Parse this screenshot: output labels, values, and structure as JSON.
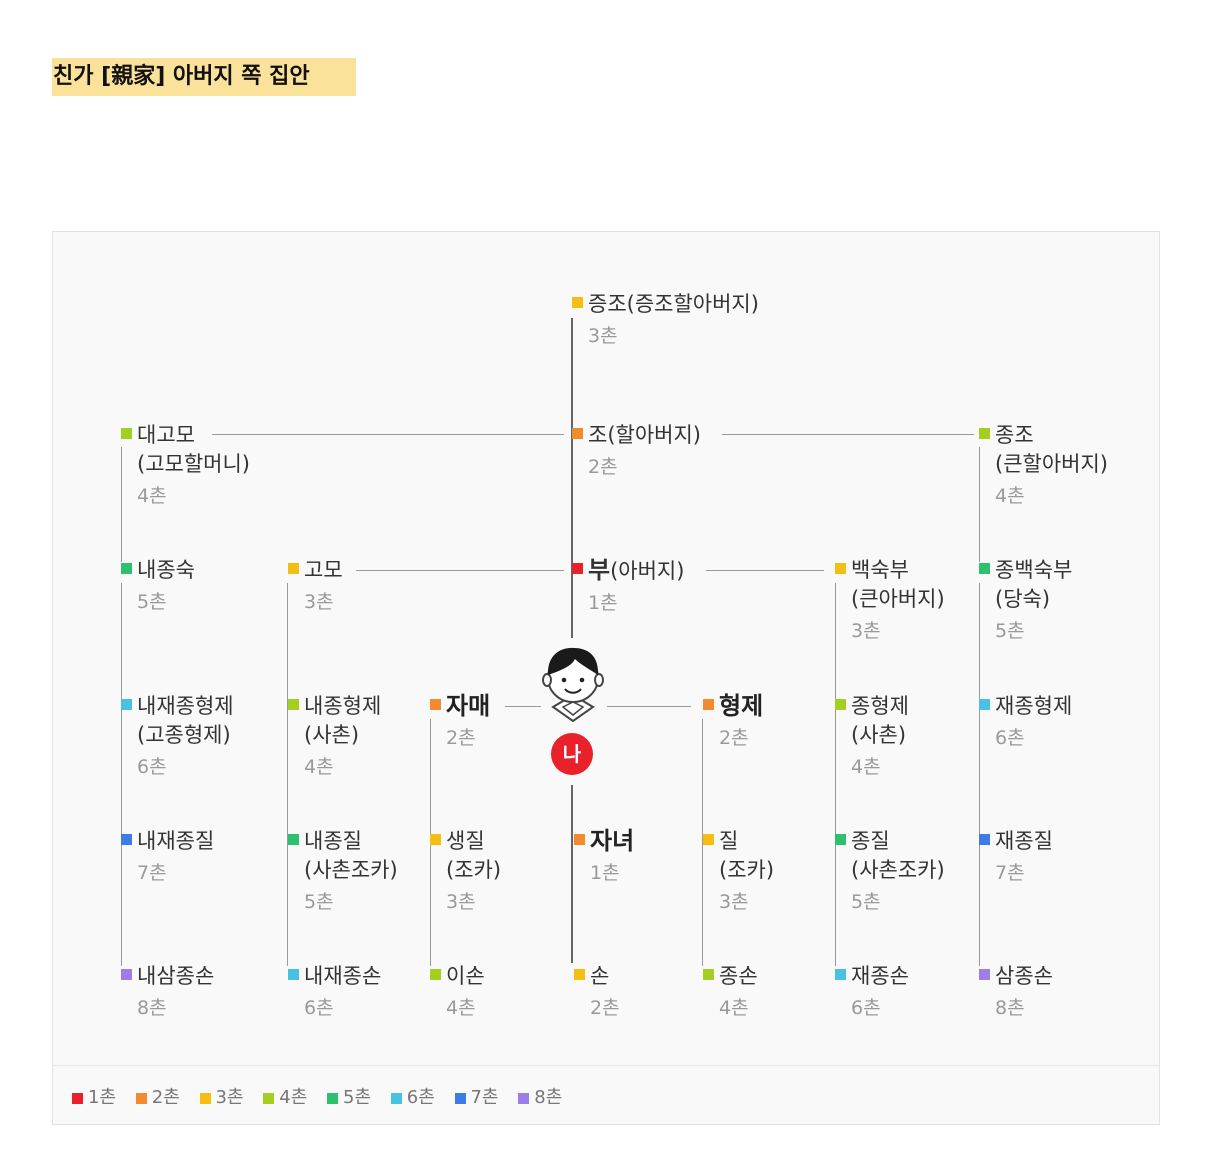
{
  "title": "친가 [親家] 아버지 쪽 집안",
  "colors": {
    "1": "#e8212b",
    "2": "#f28a2f",
    "3": "#f5be12",
    "4": "#a4cf20",
    "5": "#2ec16d",
    "6": "#49c1e3",
    "7": "#3d7be6",
    "8": "#9d7ee8"
  },
  "me": "나",
  "nodes": {
    "jeungjo": {
      "name": "증조(증조할아버지)",
      "degree": "3촌"
    },
    "jo": {
      "name": "조(할아버지)",
      "degree": "2촌"
    },
    "daegomo": {
      "name": "대고모",
      "sub": "(고모할머니)",
      "degree": "4촌"
    },
    "jongjo": {
      "name": "종조",
      "sub": "(큰할아버지)",
      "degree": "4촌"
    },
    "bu": {
      "name": "부",
      "name2": "(아버지)",
      "degree": "1촌"
    },
    "gomo": {
      "name": "고모",
      "degree": "3촌"
    },
    "naejongsuk": {
      "name": "내종숙",
      "degree": "5촌"
    },
    "baeksukbu": {
      "name": "백숙부",
      "sub": "(큰아버지)",
      "degree": "3촌"
    },
    "jongbaeksukbu": {
      "name": "종백숙부",
      "sub": "(당숙)",
      "degree": "5촌"
    },
    "naejaejonghyeongje": {
      "name": "내재종형제",
      "sub": "(고종형제)",
      "degree": "6촌"
    },
    "naejonghyeongje": {
      "name": "내종형제",
      "sub": "(사촌)",
      "degree": "4촌"
    },
    "jamae": {
      "name": "자매",
      "degree": "2촌"
    },
    "hyeongje": {
      "name": "형제",
      "degree": "2촌"
    },
    "jonghyeongje": {
      "name": "종형제",
      "sub": "(사촌)",
      "degree": "4촌"
    },
    "jaejonghyeongje": {
      "name": "재종형제",
      "degree": "6촌"
    },
    "naejaejongjil": {
      "name": "내재종질",
      "degree": "7촌"
    },
    "naejongjil": {
      "name": "내종질",
      "sub": "(사촌조카)",
      "degree": "5촌"
    },
    "saengjil": {
      "name": "생질",
      "sub": "(조카)",
      "degree": "3촌"
    },
    "janyeo": {
      "name": "자녀",
      "degree": "1촌"
    },
    "jil": {
      "name": "질",
      "sub": "(조카)",
      "degree": "3촌"
    },
    "jongjil": {
      "name": "종질",
      "sub": "(사촌조카)",
      "degree": "5촌"
    },
    "jaejongjil": {
      "name": "재종질",
      "degree": "7촌"
    },
    "naesamjongson": {
      "name": "내삼종손",
      "degree": "8촌"
    },
    "naejaejongson": {
      "name": "내재종손",
      "degree": "6촌"
    },
    "ison": {
      "name": "이손",
      "degree": "4촌"
    },
    "son": {
      "name": "손",
      "degree": "2촌"
    },
    "jongson": {
      "name": "종손",
      "degree": "4촌"
    },
    "jaejongson": {
      "name": "재종손",
      "degree": "6촌"
    },
    "samjongson": {
      "name": "삼종손",
      "degree": "8촌"
    }
  },
  "legend": [
    "1촌",
    "2촌",
    "3촌",
    "4촌",
    "5촌",
    "6촌",
    "7촌",
    "8촌"
  ]
}
